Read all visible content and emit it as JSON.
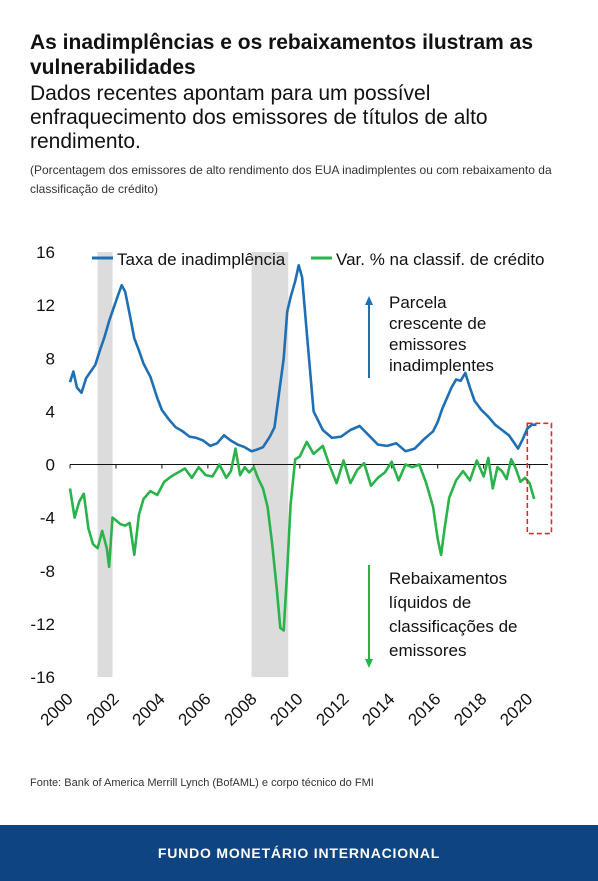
{
  "title": "As inadimplências e os rebaixamentos ilustram as vulnerabilidades",
  "subtitle": "Dados recentes apontam para um possível enfraquecimento dos emissores de títulos de alto rendimento.",
  "note": "(Porcentagem dos emissores de alto rendimento dos EUA inadimplentes ou com rebaixamento da classificação de crédito)",
  "source": "Fonte:  Bank of America Merrill Lynch (BofAML) e corpo técnico do FMI",
  "footer": "FUNDO MONETÁRIO INTERNACIONAL",
  "annotations": {
    "up": [
      "Parcela",
      "crescente de",
      "emissores",
      "inadimplentes"
    ],
    "down": [
      "Rebaixamentos",
      "líquidos de",
      "classificações de",
      "emissores"
    ]
  },
  "chart_data": {
    "type": "line",
    "title": "",
    "xlabel": "",
    "ylabel": "",
    "xlim": [
      2000,
      2020.8
    ],
    "ylim": [
      -16,
      16
    ],
    "yticks": [
      16,
      12,
      8,
      4,
      0,
      -4,
      -8,
      -12,
      -16
    ],
    "xticks": [
      "2000",
      "2002",
      "2004",
      "2006",
      "2008",
      "2010",
      "2012",
      "2014",
      "2016",
      "2018",
      "2020"
    ],
    "legend_position": "top",
    "grid": false,
    "shaded_periods": [
      [
        2001.2,
        2001.85
      ],
      [
        2007.9,
        2009.5
      ]
    ],
    "highlight_box": [
      2019.9,
      2020.95,
      -5.2,
      3.1
    ],
    "colors": {
      "default": "#1f6fb4",
      "downgrade": "#2ab34a",
      "recession": "#dcdcdc",
      "box": "#e8262c",
      "arrow_up": "#1f6fb4",
      "arrow_down": "#2ab34a"
    },
    "series": [
      {
        "name": "Taxa de inadimplência",
        "key": "default",
        "x": [
          2000.0,
          2000.15,
          2000.3,
          2000.5,
          2000.7,
          2000.9,
          2001.1,
          2001.3,
          2001.5,
          2001.7,
          2001.9,
          2002.1,
          2002.25,
          2002.4,
          2002.6,
          2002.8,
          2003.0,
          2003.2,
          2003.5,
          2003.8,
          2004.0,
          2004.3,
          2004.6,
          2004.9,
          2005.2,
          2005.5,
          2005.8,
          2006.1,
          2006.4,
          2006.7,
          2007.0,
          2007.3,
          2007.6,
          2007.9,
          2008.1,
          2008.4,
          2008.7,
          2008.9,
          2009.1,
          2009.3,
          2009.45,
          2009.6,
          2009.8,
          2009.95,
          2010.1,
          2010.3,
          2010.6,
          2011.0,
          2011.4,
          2011.8,
          2012.2,
          2012.6,
          2013.0,
          2013.4,
          2013.8,
          2014.2,
          2014.6,
          2015.0,
          2015.4,
          2015.8,
          2016.0,
          2016.2,
          2016.4,
          2016.6,
          2016.8,
          2017.0,
          2017.2,
          2017.4,
          2017.6,
          2017.9,
          2018.2,
          2018.5,
          2018.8,
          2019.1,
          2019.3,
          2019.5,
          2019.7,
          2019.9,
          2020.1,
          2020.3
        ],
        "y": [
          6.2,
          7.0,
          5.8,
          5.4,
          6.5,
          7.0,
          7.5,
          8.6,
          9.6,
          10.8,
          11.8,
          12.8,
          13.5,
          13.0,
          11.3,
          9.5,
          8.6,
          7.6,
          6.6,
          5.0,
          4.1,
          3.4,
          2.8,
          2.5,
          2.1,
          2.0,
          1.8,
          1.4,
          1.6,
          2.2,
          1.8,
          1.5,
          1.3,
          1.0,
          1.1,
          1.3,
          2.1,
          2.8,
          5.4,
          8.0,
          11.5,
          12.6,
          13.8,
          15.0,
          14.1,
          10.0,
          4.0,
          2.6,
          2.0,
          2.1,
          2.6,
          2.9,
          2.2,
          1.5,
          1.4,
          1.6,
          1.0,
          1.2,
          1.9,
          2.5,
          3.2,
          4.2,
          5.0,
          5.8,
          6.4,
          6.3,
          6.9,
          5.8,
          4.8,
          4.1,
          3.6,
          3.0,
          2.6,
          2.2,
          1.7,
          1.2,
          1.9,
          2.7,
          3.0,
          3.0
        ]
      },
      {
        "name": "Var. % na classif. de crédito",
        "key": "downgrade",
        "x": [
          2000.0,
          2000.2,
          2000.4,
          2000.6,
          2000.8,
          2001.0,
          2001.2,
          2001.4,
          2001.6,
          2001.7,
          2001.85,
          2002.0,
          2002.2,
          2002.4,
          2002.6,
          2002.8,
          2003.0,
          2003.2,
          2003.5,
          2003.8,
          2004.1,
          2004.4,
          2004.7,
          2005.0,
          2005.3,
          2005.6,
          2005.9,
          2006.2,
          2006.5,
          2006.8,
          2007.0,
          2007.2,
          2007.4,
          2007.6,
          2007.8,
          2008.0,
          2008.2,
          2008.4,
          2008.6,
          2008.8,
          2009.0,
          2009.15,
          2009.3,
          2009.45,
          2009.6,
          2009.8,
          2010.0,
          2010.3,
          2010.6,
          2011.0,
          2011.3,
          2011.6,
          2011.9,
          2012.2,
          2012.5,
          2012.8,
          2013.1,
          2013.4,
          2013.7,
          2014.0,
          2014.3,
          2014.6,
          2014.9,
          2015.2,
          2015.5,
          2015.8,
          2016.0,
          2016.15,
          2016.3,
          2016.5,
          2016.8,
          2017.1,
          2017.4,
          2017.7,
          2018.0,
          2018.2,
          2018.4,
          2018.6,
          2018.8,
          2019.0,
          2019.2,
          2019.4,
          2019.6,
          2019.8,
          2020.0,
          2020.2
        ],
        "y": [
          -1.8,
          -4.0,
          -2.8,
          -2.2,
          -4.8,
          -6.0,
          -6.3,
          -5.0,
          -6.3,
          -7.7,
          -4.0,
          -4.2,
          -4.5,
          -4.6,
          -4.4,
          -6.8,
          -3.8,
          -2.6,
          -2.0,
          -2.3,
          -1.3,
          -0.9,
          -0.6,
          -0.3,
          -1.0,
          -0.2,
          -0.8,
          -0.9,
          0.0,
          -1.0,
          -0.5,
          1.2,
          -0.8,
          -0.2,
          -0.6,
          -0.2,
          -1.1,
          -1.8,
          -3.2,
          -6.0,
          -9.4,
          -12.3,
          -12.5,
          -8.0,
          -3.0,
          0.4,
          0.6,
          1.7,
          0.8,
          1.4,
          -0.1,
          -1.4,
          0.3,
          -1.4,
          -0.4,
          0.1,
          -1.6,
          -1.0,
          -0.6,
          0.2,
          -1.2,
          0.0,
          -0.2,
          0.0,
          -1.4,
          -3.2,
          -5.6,
          -6.8,
          -4.8,
          -2.5,
          -1.2,
          -0.5,
          -1.2,
          0.3,
          -0.9,
          0.5,
          -1.8,
          -0.2,
          -0.5,
          -1.1,
          0.4,
          -0.3,
          -1.3,
          -1.0,
          -1.4,
          -2.6
        ]
      }
    ]
  }
}
